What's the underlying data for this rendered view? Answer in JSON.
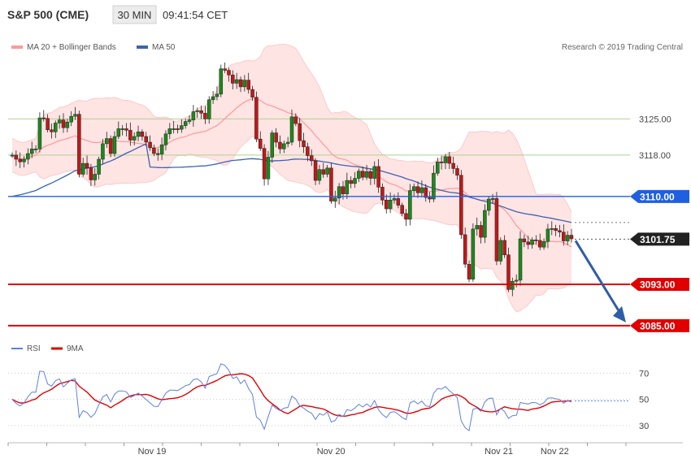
{
  "header": {
    "symbol": "S&P 500 (CME)",
    "timeframe": "30 MIN",
    "time": "09:41:54 CET"
  },
  "legend": {
    "ma20_label": "MA 20 + Bollinger Bands",
    "ma50_label": "MA 50",
    "copyright": "Research © 2019 Trading Central"
  },
  "rsi_legend": {
    "rsi_label": "RSI",
    "ma_label": "9MA"
  },
  "colors": {
    "up": "#1a8a1a",
    "down": "#c01818",
    "ma20": "#ff9999",
    "band": "#ffe4e4",
    "ma50": "#3a64b0",
    "support": "#e00000",
    "pivot": "#1f5fe0",
    "resistance_line": "#a8d48a",
    "arrow": "#2e5ea8",
    "rsi": "#5f80e0",
    "rsi_ma": "#e00000"
  },
  "chart_data": [
    {
      "type": "candlestick",
      "title": "S&P 500 (CME)",
      "ylim": [
        3082,
        3137
      ],
      "y_ticks": [
        3125.0,
        3118.0
      ],
      "levels": [
        {
          "value": 3110.0,
          "label": "3110.00",
          "kind": "pivot"
        },
        {
          "value": 3101.75,
          "label": "3101.75",
          "kind": "last"
        },
        {
          "value": 3093.0,
          "label": "3093.00",
          "kind": "support"
        },
        {
          "value": 3085.0,
          "label": "3085.00",
          "kind": "support"
        }
      ],
      "x_labels": [
        "Nov 19",
        "Nov 20",
        "Nov 21",
        "Nov 22"
      ],
      "arrow": {
        "from": 3101.75,
        "to": 3085.0
      },
      "series": [
        {
          "name": "Candles",
          "start": 3118.0,
          "closes": [
            3118.0,
            3117.2,
            3116.7,
            3117.2,
            3118.3,
            3119.2,
            3119.2,
            3125.2,
            3125.1,
            3122.9,
            3122.5,
            3124.2,
            3124.8,
            3123.3,
            3124.4,
            3125.5,
            3125.9,
            3114.3,
            3116.4,
            3115.5,
            3113.2,
            3114.3,
            3117.2,
            3120.2,
            3121.2,
            3118.3,
            3121.6,
            3123.1,
            3123.1,
            3122.8,
            3120.9,
            3121.6,
            3122.5,
            3121.6,
            3120.5,
            3119.4,
            3118.3,
            3118.2,
            3120.0,
            3122.1,
            3123.1,
            3123.1,
            3123.0,
            3123.7,
            3124.5,
            3124.8,
            3126.4,
            3126.6,
            3126.1,
            3125.0,
            3128.7,
            3129.3,
            3129.8,
            3134.7,
            3134.4,
            3133.5,
            3131.9,
            3132.6,
            3131.2,
            3132.5,
            3130.7,
            3129.2,
            3121.1,
            3119.3,
            3113.4,
            3117.6,
            3122.3,
            3120.5,
            3119.2,
            3120.2,
            3120.5,
            3125.4,
            3124.1,
            3120.8,
            3119.6,
            3117.9,
            3116.9,
            3113.1,
            3115.2,
            3114.3,
            3115.5,
            3109.1,
            3109.7,
            3111.9,
            3110.5,
            3113.1,
            3112.5,
            3113.5,
            3114.9,
            3113.7,
            3114.8,
            3113.5,
            3115.8,
            3111.8,
            3109.3,
            3107.6,
            3109.3,
            3109.6,
            3108.3,
            3106.7,
            3105.6,
            3111.1,
            3111.9,
            3110.7,
            3111.7,
            3109.8,
            3109.5,
            3114.5,
            3116.7,
            3116.5,
            3117.7,
            3116.4,
            3115.4,
            3114.1,
            3102.6,
            3096.9,
            3094.0,
            3103.7,
            3104.4,
            3102.1,
            3107.3,
            3109.5,
            3109.6,
            3097.5,
            3101.5,
            3098.7,
            3092.0,
            3093.6,
            3093.8,
            3101.8,
            3101.2,
            3100.7,
            3101.6,
            3101.5,
            3100.2,
            3101.3,
            3103.7,
            3103.8,
            3103.4,
            3103.1,
            3101.4,
            3102.5,
            3101.8
          ]
        },
        {
          "name": "MA 50",
          "start": 3110.0,
          "end": 3104.0
        },
        {
          "name": "MA 20 + Bollinger Bands"
        }
      ]
    },
    {
      "type": "line",
      "title": "RSI",
      "ylim": [
        20,
        82
      ],
      "y_ticks": [
        70,
        50,
        30
      ],
      "series": [
        {
          "name": "RSI"
        },
        {
          "name": "9MA"
        }
      ]
    }
  ]
}
